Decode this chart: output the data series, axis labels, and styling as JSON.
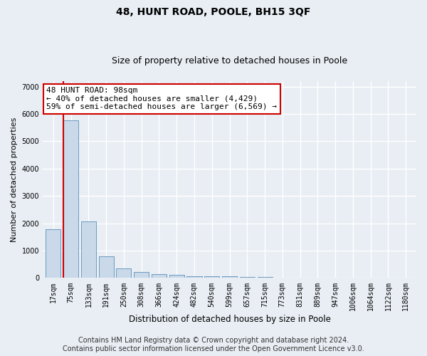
{
  "title": "48, HUNT ROAD, POOLE, BH15 3QF",
  "subtitle": "Size of property relative to detached houses in Poole",
  "xlabel": "Distribution of detached houses by size in Poole",
  "ylabel": "Number of detached properties",
  "categories": [
    "17sqm",
    "75sqm",
    "133sqm",
    "191sqm",
    "250sqm",
    "308sqm",
    "366sqm",
    "424sqm",
    "482sqm",
    "540sqm",
    "599sqm",
    "657sqm",
    "715sqm",
    "773sqm",
    "831sqm",
    "889sqm",
    "947sqm",
    "1006sqm",
    "1064sqm",
    "1122sqm",
    "1180sqm"
  ],
  "values": [
    1780,
    5780,
    2080,
    800,
    340,
    220,
    130,
    110,
    75,
    60,
    55,
    50,
    45,
    0,
    0,
    0,
    0,
    0,
    0,
    0,
    0
  ],
  "bar_color": "#c9d9ea",
  "bar_edge_color": "#5b8db8",
  "red_line_x": 1,
  "red_line_color": "#cc0000",
  "annotation_text": "48 HUNT ROAD: 98sqm\n← 40% of detached houses are smaller (4,429)\n59% of semi-detached houses are larger (6,569) →",
  "annotation_box_color": "white",
  "annotation_box_edge_color": "#cc0000",
  "ylim": [
    0,
    7200
  ],
  "yticks": [
    0,
    1000,
    2000,
    3000,
    4000,
    5000,
    6000,
    7000
  ],
  "background_color": "#e8eef4",
  "axes_background": "#e8eef4",
  "grid_color": "white",
  "footer_line1": "Contains HM Land Registry data © Crown copyright and database right 2024.",
  "footer_line2": "Contains public sector information licensed under the Open Government Licence v3.0.",
  "title_fontsize": 10,
  "subtitle_fontsize": 9,
  "annotation_fontsize": 8,
  "ylabel_fontsize": 8,
  "xlabel_fontsize": 8.5,
  "footer_fontsize": 7,
  "tick_fontsize": 7
}
